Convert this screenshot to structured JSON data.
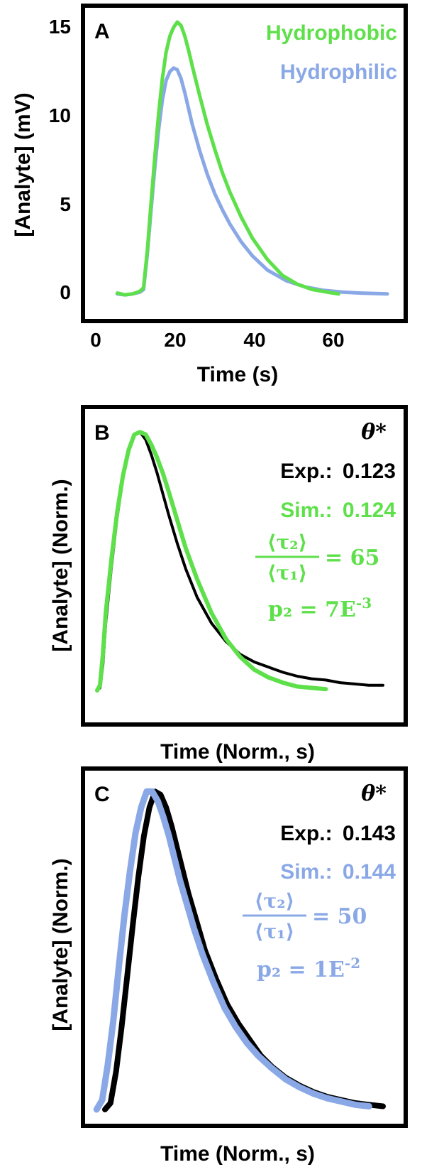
{
  "chart_data": [
    {
      "panel": "A",
      "type": "line",
      "xlabel": "Time (s)",
      "ylabel": "[Analyte] (mV)",
      "xlim": [
        -5,
        75
      ],
      "ylim": [
        -1,
        16
      ],
      "xticks": [
        "0",
        "20",
        "40",
        "60"
      ],
      "yticks": [
        "0",
        "5",
        "10",
        "15"
      ],
      "grid": false,
      "legend": "top-right",
      "series": [
        {
          "name": "Hydrophobic",
          "color": "#5ee04a",
          "x": [
            0,
            2,
            4,
            6,
            7,
            8,
            9,
            10,
            11,
            12,
            13,
            14,
            15,
            16,
            17,
            18,
            19,
            20,
            22,
            24,
            26,
            28,
            30,
            33,
            36,
            40,
            44,
            48,
            52,
            56,
            59
          ],
          "y": [
            0.1,
            0.0,
            0.05,
            0.2,
            0.4,
            2.5,
            5.2,
            7.8,
            10.2,
            12.2,
            13.7,
            14.6,
            15.1,
            15.4,
            15.2,
            14.6,
            13.8,
            12.9,
            11.2,
            9.6,
            8.2,
            6.9,
            5.8,
            4.4,
            3.2,
            2.0,
            1.1,
            0.6,
            0.3,
            0.15,
            0.05
          ]
        },
        {
          "name": "Hydrophilic",
          "color": "#8aa8e6",
          "x": [
            0,
            2,
            4,
            6,
            7,
            8,
            9,
            10,
            11,
            12,
            13,
            14,
            15,
            16,
            17,
            18,
            19,
            20,
            22,
            24,
            26,
            28,
            30,
            33,
            36,
            40,
            45,
            50,
            55,
            60,
            65,
            72
          ],
          "y": [
            0.05,
            0.0,
            0.05,
            0.15,
            0.3,
            2.3,
            4.8,
            7.2,
            9.3,
            11.0,
            12.1,
            12.6,
            12.8,
            12.7,
            12.2,
            11.4,
            10.5,
            9.6,
            8.1,
            6.8,
            5.7,
            4.8,
            4.0,
            3.0,
            2.2,
            1.4,
            0.8,
            0.45,
            0.25,
            0.15,
            0.1,
            0.05
          ]
        }
      ]
    },
    {
      "panel": "B",
      "type": "line",
      "xlabel": "Time (Norm., s)",
      "ylabel": "[Analyte] (Norm.)",
      "xlim": [
        0,
        1
      ],
      "ylim": [
        0,
        1.05
      ],
      "grid": false,
      "series": [
        {
          "color": "#000000",
          "x": [
            0.0,
            0.01,
            0.02,
            0.03,
            0.05,
            0.07,
            0.09,
            0.11,
            0.13,
            0.15,
            0.17,
            0.19,
            0.21,
            0.23,
            0.25,
            0.28,
            0.31,
            0.35,
            0.4,
            0.45,
            0.5,
            0.55,
            0.6,
            0.65,
            0.7,
            0.75,
            0.8,
            0.85,
            0.9,
            0.95,
            1.0
          ],
          "y": [
            0.0,
            0.01,
            0.1,
            0.26,
            0.48,
            0.67,
            0.82,
            0.93,
            0.99,
            1.0,
            0.97,
            0.91,
            0.84,
            0.76,
            0.68,
            0.57,
            0.47,
            0.36,
            0.26,
            0.19,
            0.14,
            0.11,
            0.09,
            0.07,
            0.055,
            0.045,
            0.04,
            0.03,
            0.025,
            0.02,
            0.02
          ]
        },
        {
          "color": "#5ee04a",
          "x": [
            0.0,
            0.01,
            0.02,
            0.03,
            0.05,
            0.07,
            0.09,
            0.11,
            0.13,
            0.15,
            0.17,
            0.19,
            0.21,
            0.23,
            0.25,
            0.28,
            0.31,
            0.35,
            0.4,
            0.45,
            0.5,
            0.55,
            0.6,
            0.65,
            0.7,
            0.75,
            0.8
          ],
          "y": [
            0.0,
            0.02,
            0.14,
            0.3,
            0.51,
            0.69,
            0.83,
            0.93,
            0.99,
            1.0,
            0.99,
            0.95,
            0.9,
            0.84,
            0.77,
            0.66,
            0.55,
            0.43,
            0.3,
            0.2,
            0.13,
            0.08,
            0.05,
            0.03,
            0.015,
            0.01,
            0.005
          ]
        }
      ],
      "annotations": {
        "theta": "θ*",
        "exp_label": "Exp.:",
        "exp_value": "0.123",
        "sim_label": "Sim.:",
        "sim_value": "0.124",
        "ratio_num": "⟨τ₂⟩",
        "ratio_den": "⟨τ₁⟩",
        "ratio_value": "= 65",
        "p2_label": "p₂ = 7E",
        "p2_exp": "-3",
        "exp_color": "#000000",
        "sim_color": "#5ee04a"
      }
    },
    {
      "panel": "C",
      "type": "line",
      "xlabel": "Time (Norm., s)",
      "ylabel": "[Analyte] (Norm.)",
      "xlim": [
        0,
        1
      ],
      "ylim": [
        0,
        1.05
      ],
      "grid": false,
      "series": [
        {
          "color": "#000000",
          "x": [
            0.0,
            0.02,
            0.04,
            0.06,
            0.08,
            0.1,
            0.12,
            0.14,
            0.16,
            0.18,
            0.2,
            0.22,
            0.24,
            0.26,
            0.28,
            0.3,
            0.33,
            0.36,
            0.4,
            0.44,
            0.48,
            0.52,
            0.56,
            0.6,
            0.65,
            0.7,
            0.75,
            0.8,
            0.85,
            0.9,
            0.95,
            1.0
          ],
          "y": [
            0.0,
            0.02,
            0.12,
            0.26,
            0.42,
            0.58,
            0.73,
            0.86,
            0.95,
            1.0,
            0.99,
            0.95,
            0.89,
            0.82,
            0.75,
            0.68,
            0.59,
            0.5,
            0.41,
            0.33,
            0.27,
            0.22,
            0.17,
            0.135,
            0.1,
            0.075,
            0.055,
            0.04,
            0.03,
            0.02,
            0.015,
            0.01
          ]
        },
        {
          "color": "#8aa8e6",
          "x": [
            -0.03,
            -0.01,
            0.01,
            0.03,
            0.05,
            0.07,
            0.09,
            0.11,
            0.13,
            0.15,
            0.17,
            0.19,
            0.21,
            0.23,
            0.25,
            0.27,
            0.29,
            0.32,
            0.35,
            0.39,
            0.43,
            0.47,
            0.51,
            0.55,
            0.6,
            0.65,
            0.7,
            0.75,
            0.8,
            0.85,
            0.9,
            0.95
          ],
          "y": [
            0.0,
            0.03,
            0.14,
            0.28,
            0.45,
            0.61,
            0.75,
            0.87,
            0.95,
            1.0,
            1.0,
            0.97,
            0.92,
            0.86,
            0.79,
            0.72,
            0.66,
            0.57,
            0.49,
            0.4,
            0.32,
            0.26,
            0.21,
            0.17,
            0.13,
            0.095,
            0.07,
            0.05,
            0.035,
            0.025,
            0.015,
            0.01
          ]
        }
      ],
      "annotations": {
        "theta": "θ*",
        "exp_label": "Exp.:",
        "exp_value": "0.143",
        "sim_label": "Sim.:",
        "sim_value": "0.144",
        "ratio_num": "⟨τ₂⟩",
        "ratio_den": "⟨τ₁⟩",
        "ratio_value": "= 50",
        "p2_label": "p₂ = 1E",
        "p2_exp": "-2",
        "exp_color": "#000000",
        "sim_color": "#8aa8e6"
      }
    }
  ]
}
